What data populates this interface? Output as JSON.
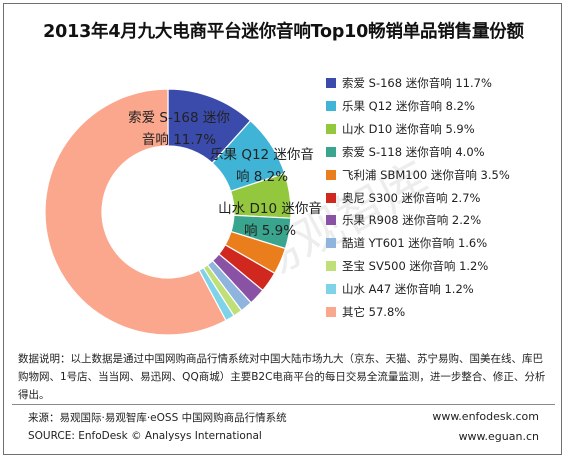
{
  "title": "2013年4月九大电商平台迷你音响Top10畅销单品销售量份额",
  "watermark": "易观智库",
  "chart_data": {
    "type": "pie",
    "title": "2013年4月九大电商平台迷你音响Top10畅销单品销售量份额",
    "donut": true,
    "start_angle": "12 o'clock, clockwise",
    "legend_position": "right",
    "series": [
      {
        "name": "索爱 S-168 迷你音响",
        "value": 11.7,
        "value_label": "11.7%",
        "color": "#3b4bab"
      },
      {
        "name": "乐果 Q12 迷你音响",
        "value": 8.2,
        "value_label": "8.2%",
        "color": "#3fb4d6"
      },
      {
        "name": "山水 D10 迷你音响",
        "value": 5.9,
        "value_label": "5.9%",
        "color": "#93c83e"
      },
      {
        "name": "索爱 S-118 迷你音响",
        "value": 4.0,
        "value_label": "4.0%",
        "color": "#3aa58e"
      },
      {
        "name": "飞利浦 SBM100 迷你音响",
        "value": 3.5,
        "value_label": "3.5%",
        "color": "#ea7d1c"
      },
      {
        "name": "奥尼 S300 迷你音响",
        "value": 2.7,
        "value_label": "2.7%",
        "color": "#d0281e"
      },
      {
        "name": "乐果 R908 迷你音响",
        "value": 2.2,
        "value_label": "2.2%",
        "color": "#8a52a4"
      },
      {
        "name": "酷道 YT601 迷你音响",
        "value": 1.6,
        "value_label": "1.6%",
        "color": "#8fb5df"
      },
      {
        "name": "圣宝 SV500 迷你音响",
        "value": 1.2,
        "value_label": "1.2%",
        "color": "#bfe078"
      },
      {
        "name": "山水 A47 迷你音响",
        "value": 1.2,
        "value_label": "1.2%",
        "color": "#7fd3e8"
      },
      {
        "name": "其它",
        "value": 57.8,
        "value_label": "57.8%",
        "color": "#fba78d"
      }
    ],
    "data_labels": [
      {
        "series_index": 0,
        "line1": "索爱 S-168 迷你",
        "line2": "音响 11.7%"
      },
      {
        "series_index": 1,
        "line1": "乐果 Q12 迷你音",
        "line2": "响 8.2%"
      },
      {
        "series_index": 2,
        "line1": "山水 D10 迷你音",
        "line2": "响 5.9%"
      }
    ]
  },
  "note": "数据说明：以上数据是通过中国网购商品行情系统对中国大陆市场九大（京东、天猫、苏宁易购、国美在线、库巴购物网、1号店、当当网、易迅网、QQ商城）主要B2C电商平台的每日交易全流量监测，进一步整合、修正、分析得出。",
  "source": {
    "cn": "来源：易观国际·易观智库·eOSS 中国网购商品行情系统",
    "en": "SOURCE: EnfoDesk © Analysys International",
    "url1": "www.enfodesk.com",
    "url2": "www.eguan.cn"
  }
}
